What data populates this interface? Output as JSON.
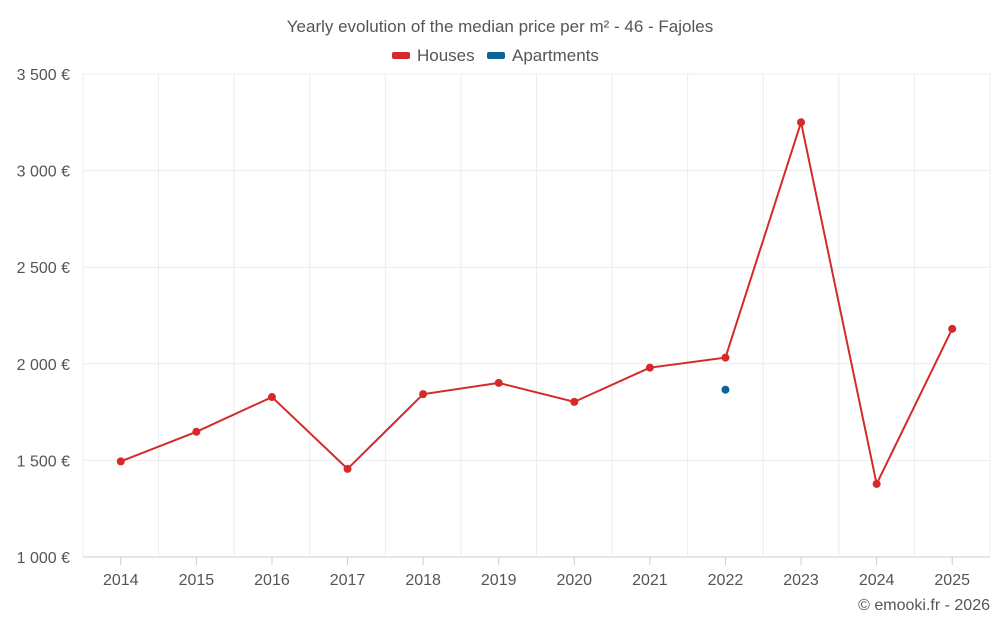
{
  "chart_data": {
    "type": "line",
    "title": "Yearly evolution of the median price per m² - 46 - Fajoles",
    "categories": [
      "2014",
      "2015",
      "2016",
      "2017",
      "2018",
      "2019",
      "2020",
      "2021",
      "2022",
      "2023",
      "2024",
      "2025"
    ],
    "y_ticks": [
      "1 000 €",
      "1 500 €",
      "2 000 €",
      "2 500 €",
      "3 000 €",
      "3 500 €"
    ],
    "ylim": [
      1000,
      3500
    ],
    "grid": true,
    "legend_position": "top",
    "series": [
      {
        "name": "Houses",
        "color": "#d42a2a",
        "values": [
          1495,
          1648,
          1828,
          1456,
          1843,
          1901,
          1803,
          1980,
          2032,
          3250,
          1378,
          2181
        ]
      },
      {
        "name": "Apartments",
        "color": "#0e6494",
        "values": [
          null,
          null,
          null,
          null,
          null,
          null,
          null,
          null,
          1866,
          null,
          null,
          null
        ]
      }
    ]
  },
  "credit": "© emooki.fr - 2026"
}
